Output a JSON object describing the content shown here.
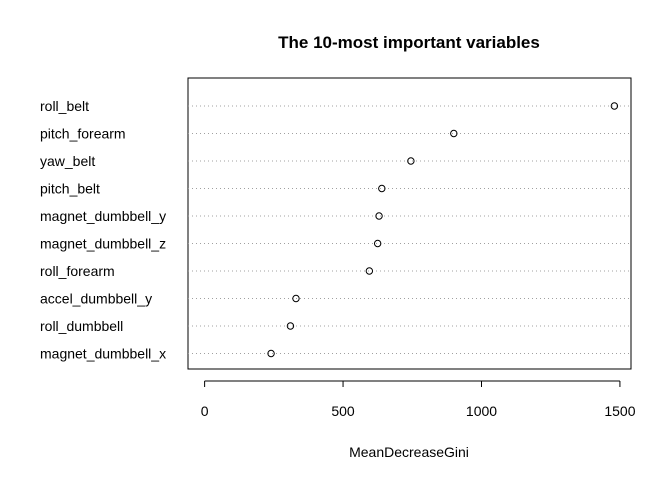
{
  "chart_data": {
    "type": "scatter",
    "title": "The 10-most important variables",
    "xlabel": "MeanDecreaseGini",
    "ylabel": "",
    "xlim": [
      -60,
      1540
    ],
    "xticks": [
      0,
      500,
      1000,
      1500
    ],
    "grid": "horizontal dotted",
    "categories": [
      "roll_belt",
      "pitch_forearm",
      "yaw_belt",
      "pitch_belt",
      "magnet_dumbbell_y",
      "magnet_dumbbell_z",
      "roll_forearm",
      "accel_dumbbell_y",
      "roll_dumbbell",
      "magnet_dumbbell_x"
    ],
    "values": [
      1480,
      900,
      745,
      640,
      630,
      625,
      595,
      330,
      310,
      240
    ]
  }
}
